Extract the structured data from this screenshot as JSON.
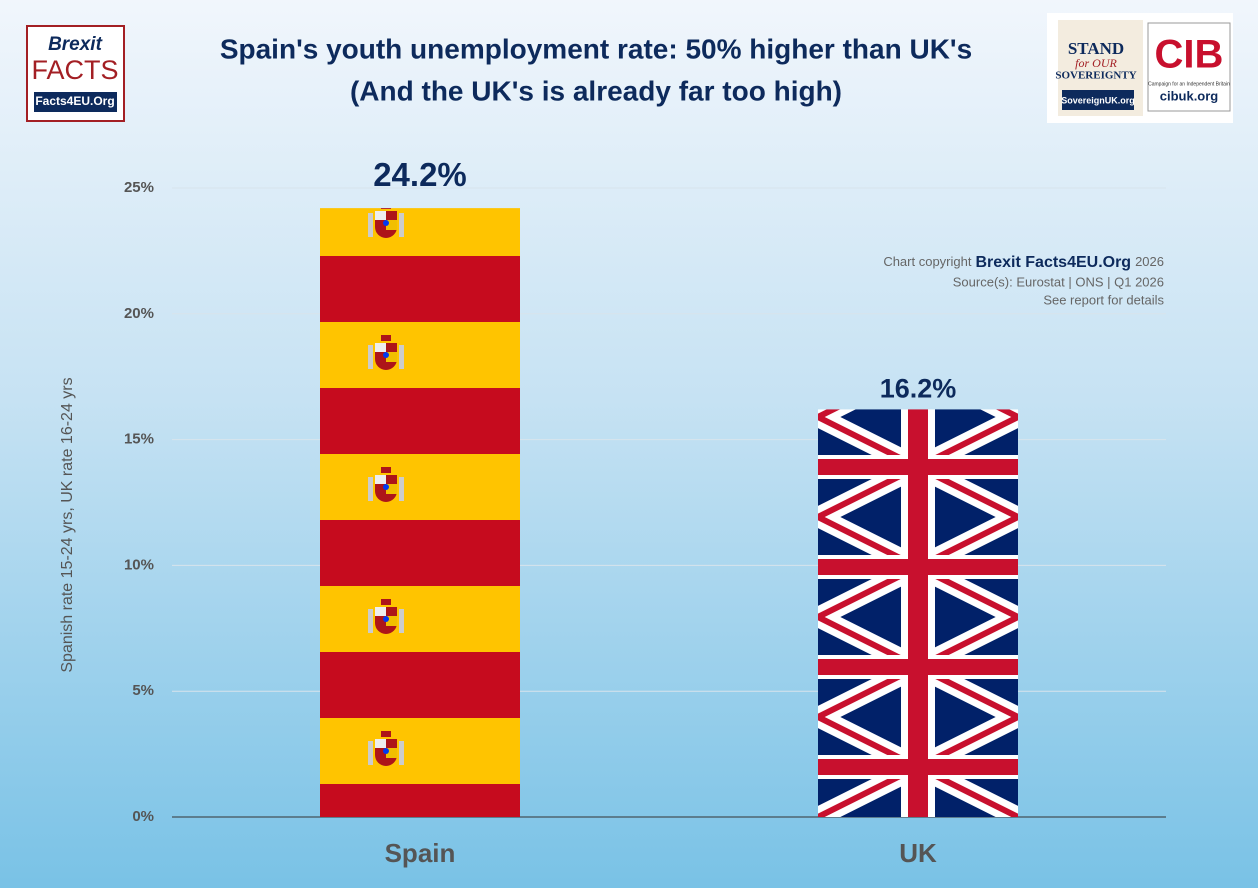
{
  "chart_data": {
    "type": "bar",
    "title": "Spain's youth unemployment rate: 50% higher than UK's",
    "subtitle": "(And the UK's is already far too high)",
    "y_label": "Spanish rate 15-24 yrs, UK rate 16-24 yrs",
    "categories": [
      "Spain",
      "UK"
    ],
    "values": [
      24.2,
      16.2
    ],
    "value_labels": [
      "24.2%",
      "16.2%"
    ],
    "ylim": [
      0,
      25
    ],
    "yticks": [
      {
        "value": 0,
        "label": "0%"
      },
      {
        "value": 5,
        "label": "5%"
      },
      {
        "value": 10,
        "label": "10%"
      },
      {
        "value": 15,
        "label": "15%"
      },
      {
        "value": 20,
        "label": "20%"
      },
      {
        "value": 25,
        "label": "25%"
      }
    ],
    "grid": true,
    "copyright": {
      "prefix": "Chart copyright",
      "brand": "Brexit Facts4EU.Org",
      "year": "2026"
    },
    "source": "Source(s): Eurostat | ONS | Q1 2026",
    "note": "See report for details"
  },
  "logos": {
    "brexit_facts": {
      "line1": "Brexit",
      "line2": "FACTS",
      "url": "Facts4EU.Org"
    },
    "sovereignty": {
      "line1": "STAND",
      "line2": "for OUR",
      "line3": "SOVEREIGNTY",
      "url": "SovereignUK.org"
    },
    "cib": {
      "mark": "CIB",
      "tagline": "Campaign for an Independent Britain",
      "url": "cibuk.org"
    }
  }
}
